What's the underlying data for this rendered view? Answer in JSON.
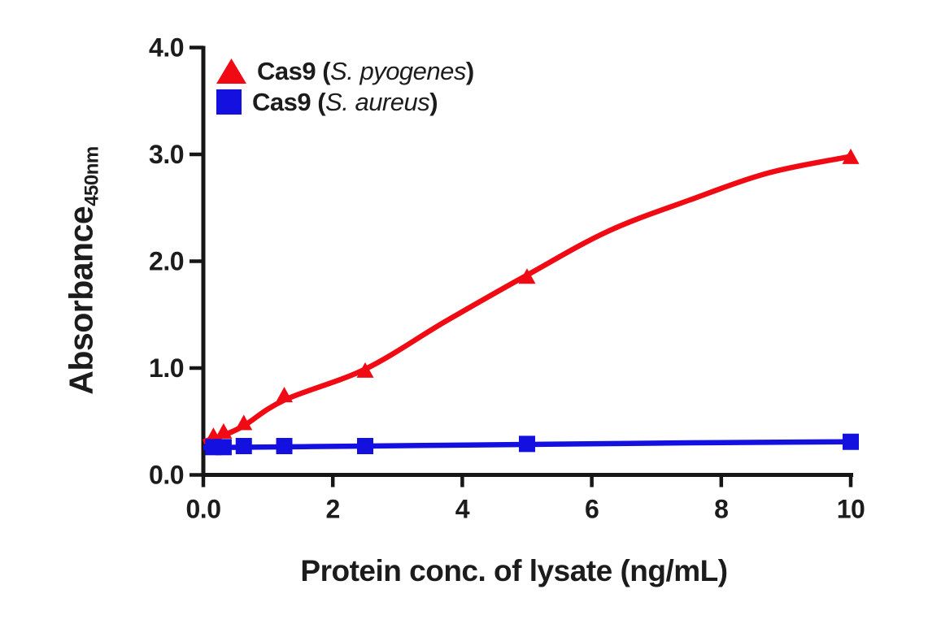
{
  "figure": {
    "background": "#ffffff",
    "text_color": "#1c1c1c",
    "axis_color": "#161616"
  },
  "chart_data": {
    "type": "scatter",
    "title": "",
    "grid": false,
    "legend_position": "top-left-inside",
    "x_axis": {
      "label": "Protein conc. of lysate (ng/mL)",
      "min": 0,
      "max": 10,
      "ticks": [
        {
          "value": 0,
          "label": "0.0"
        },
        {
          "value": 2,
          "label": "2"
        },
        {
          "value": 4,
          "label": "4"
        },
        {
          "value": 6,
          "label": "6"
        },
        {
          "value": 8,
          "label": "8"
        },
        {
          "value": 10,
          "label": "10"
        }
      ]
    },
    "y_axis": {
      "label": "Absorbance",
      "label_subscript": "450nm",
      "min": 0,
      "max": 4,
      "ticks": [
        {
          "value": 0,
          "label": "0.0"
        },
        {
          "value": 1,
          "label": "1.0"
        },
        {
          "value": 2,
          "label": "2.0"
        },
        {
          "value": 3,
          "label": "3.0"
        },
        {
          "value": 4,
          "label": "4.0"
        }
      ]
    },
    "series": [
      {
        "id": "cas9-s-pyogenes",
        "legend_prefix": "Cas9 (",
        "legend_species": "S. pyogenes",
        "legend_suffix": ")",
        "marker": "triangle",
        "color": "#f00a14",
        "points": [
          [
            0.156,
            0.36
          ],
          [
            0.313,
            0.4
          ],
          [
            0.625,
            0.48
          ],
          [
            1.25,
            0.74
          ],
          [
            2.5,
            0.97
          ],
          [
            5,
            1.85
          ],
          [
            10,
            2.97
          ]
        ],
        "fit_curve": [
          [
            0,
            0.31
          ],
          [
            0.156,
            0.34
          ],
          [
            0.313,
            0.37
          ],
          [
            0.625,
            0.46
          ],
          [
            1.25,
            0.7
          ],
          [
            2.5,
            0.99
          ],
          [
            3.75,
            1.44
          ],
          [
            5,
            1.87
          ],
          [
            6.25,
            2.28
          ],
          [
            7.5,
            2.57
          ],
          [
            8.75,
            2.83
          ],
          [
            10,
            2.98
          ]
        ]
      },
      {
        "id": "cas9-s-aureus",
        "legend_prefix": "Cas9 (",
        "legend_species": "S. aureus",
        "legend_suffix": ")",
        "marker": "square",
        "color": "#1410e0",
        "points": [
          [
            0.156,
            0.26
          ],
          [
            0.313,
            0.26
          ],
          [
            0.625,
            0.27
          ],
          [
            1.25,
            0.27
          ],
          [
            2.5,
            0.27
          ],
          [
            5,
            0.29
          ],
          [
            10,
            0.31
          ]
        ],
        "fit_curve": [
          [
            0,
            0.255
          ],
          [
            2.5,
            0.27
          ],
          [
            5,
            0.285
          ],
          [
            7.5,
            0.3
          ],
          [
            10,
            0.31
          ]
        ]
      }
    ]
  }
}
